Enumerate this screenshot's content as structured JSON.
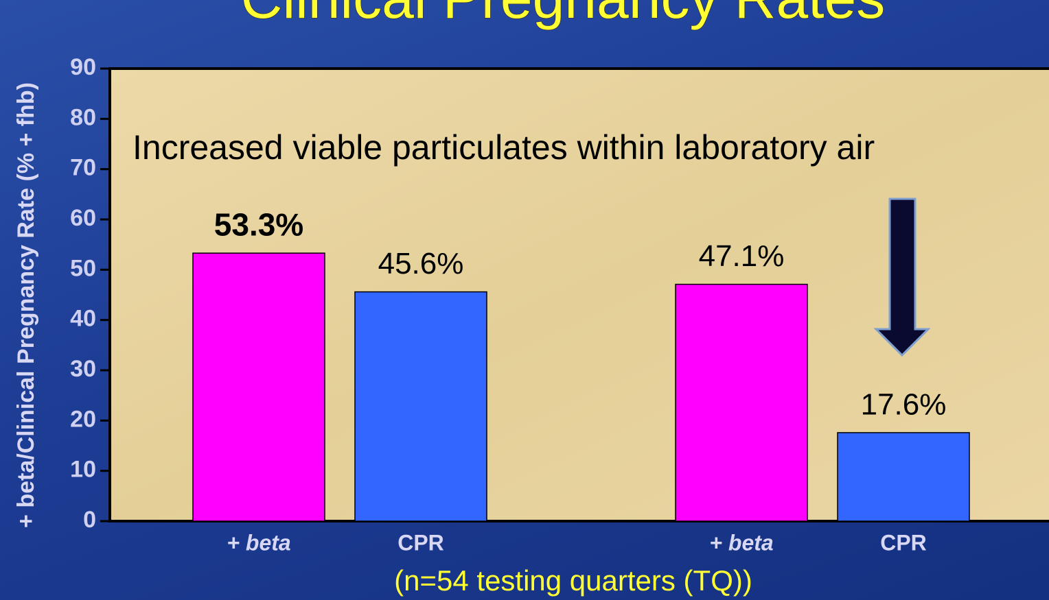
{
  "chart_data": {
    "type": "bar",
    "title": "Clinical Pregnancy Rates",
    "y_label": "+ beta/Clinical Pregnancy Rate (% + fhb)",
    "x_label": "(n=54 testing quarters (TQ))",
    "annotation": "Increased viable particulates within laboratory air",
    "categories": [
      "+ beta",
      "CPR",
      "+ beta",
      "CPR"
    ],
    "values": [
      53.3,
      45.6,
      47.1,
      17.6
    ],
    "value_labels": [
      "53.3%",
      "45.6%",
      "47.1%",
      "17.6%"
    ],
    "colors": [
      "#ff00ff",
      "#3366ff",
      "#ff00ff",
      "#3366ff"
    ],
    "ylim": [
      0,
      90
    ],
    "yticks": [
      0,
      10,
      20,
      30,
      40,
      50,
      60,
      70,
      80,
      90
    ]
  }
}
